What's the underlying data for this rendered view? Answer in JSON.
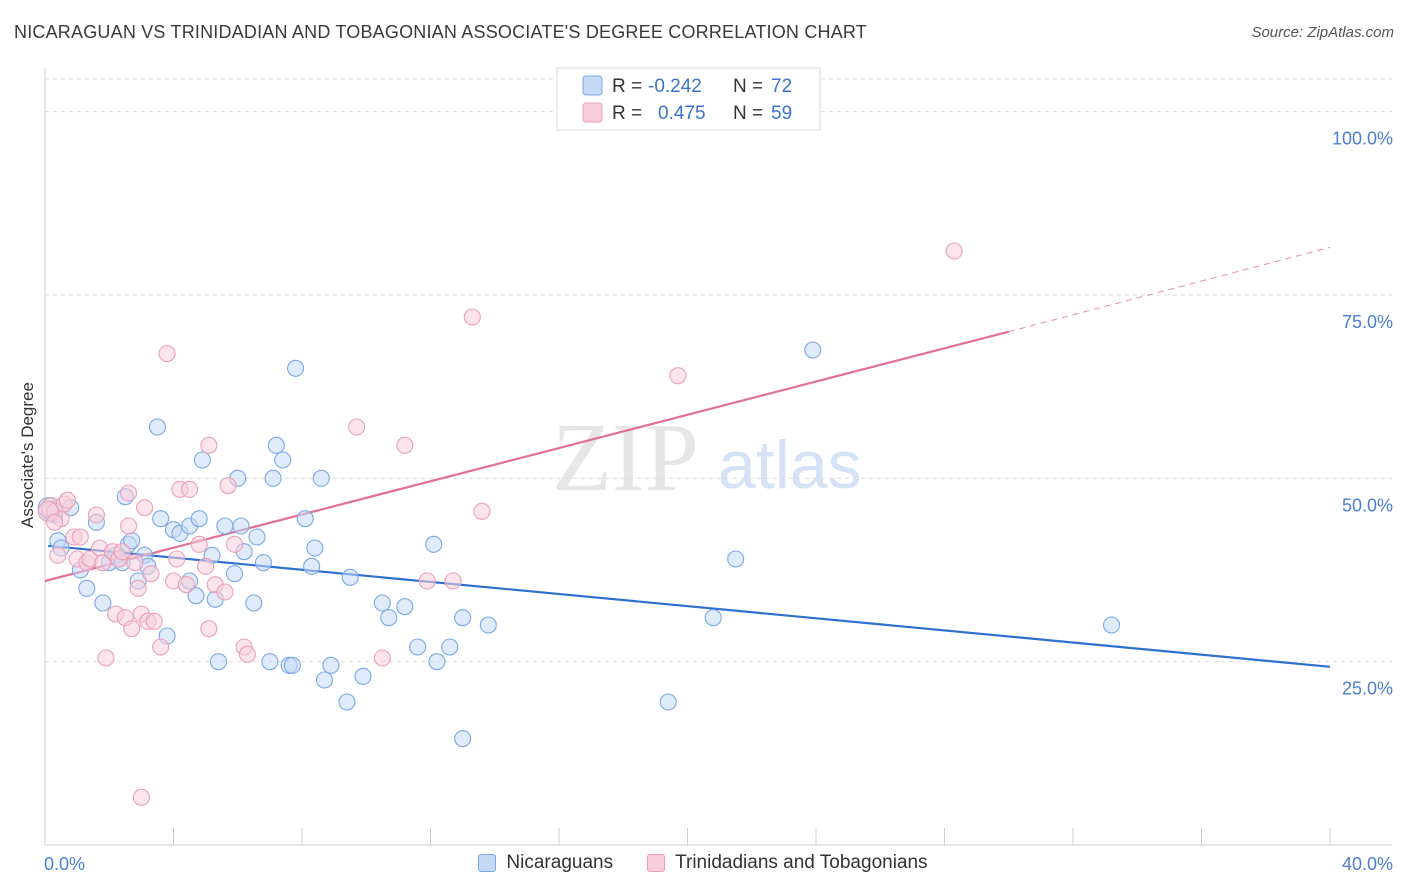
{
  "title": "NICARAGUAN VS TRINIDADIAN AND TOBAGONIAN ASSOCIATE'S DEGREE CORRELATION CHART",
  "source": "Source: ZipAtlas.com",
  "watermark": {
    "zip": "ZIP",
    "atlas": "atlas"
  },
  "legend_box": {
    "rows": [
      {
        "r_label": "R =",
        "r_value": "-0.242",
        "n_label": "N =",
        "n_value": "72"
      },
      {
        "r_label": "R =",
        "r_value": "0.475",
        "n_label": "N =",
        "n_value": "59"
      }
    ]
  },
  "chart_data": {
    "type": "scatter",
    "title": "NICARAGUAN VS TRINIDADIAN AND TOBAGONIAN ASSOCIATE'S DEGREE CORRELATION CHART",
    "xlabel": "",
    "ylabel": "Associate's Degree",
    "xlim": [
      0,
      40
    ],
    "ylim": [
      0,
      105
    ],
    "x_tick_labels": [
      "0.0%",
      "40.0%"
    ],
    "y_ticks": [
      25,
      50,
      75,
      100
    ],
    "y_tick_labels": [
      "25.0%",
      "50.0%",
      "75.0%",
      "100.0%"
    ],
    "grid": true,
    "series": [
      {
        "name": "Nicaraguans",
        "color": "#7aa8e6",
        "fill": "#c5d9f5",
        "line_color": "#2f6fd0",
        "r": -0.242,
        "n": 72,
        "trend": {
          "x0": 0.1,
          "y0": 40.8,
          "x1": 40.0,
          "y1": 24.3
        },
        "points": [
          [
            0.2,
            45.5
          ],
          [
            0.3,
            45.0
          ],
          [
            0.4,
            41.5
          ],
          [
            0.5,
            40.5
          ],
          [
            0.8,
            46.0
          ],
          [
            1.1,
            37.5
          ],
          [
            1.3,
            35.0
          ],
          [
            1.6,
            44.0
          ],
          [
            1.8,
            33.0
          ],
          [
            2.0,
            38.5
          ],
          [
            2.2,
            39.5
          ],
          [
            2.3,
            39.0
          ],
          [
            2.4,
            38.5
          ],
          [
            2.5,
            47.5
          ],
          [
            2.6,
            41.0
          ],
          [
            2.7,
            41.5
          ],
          [
            2.9,
            36.0
          ],
          [
            3.1,
            39.5
          ],
          [
            3.2,
            38.0
          ],
          [
            3.5,
            57.0
          ],
          [
            3.6,
            44.5
          ],
          [
            3.8,
            28.5
          ],
          [
            4.0,
            43.0
          ],
          [
            4.2,
            42.5
          ],
          [
            4.5,
            43.5
          ],
          [
            4.5,
            36.0
          ],
          [
            4.7,
            34.0
          ],
          [
            4.8,
            44.5
          ],
          [
            4.9,
            52.5
          ],
          [
            5.2,
            39.5
          ],
          [
            5.3,
            33.5
          ],
          [
            5.4,
            25.0
          ],
          [
            5.6,
            43.5
          ],
          [
            5.9,
            37.0
          ],
          [
            6.0,
            50.0
          ],
          [
            6.1,
            43.5
          ],
          [
            6.2,
            40.0
          ],
          [
            6.5,
            33.0
          ],
          [
            6.6,
            42.0
          ],
          [
            6.8,
            38.5
          ],
          [
            7.0,
            25.0
          ],
          [
            7.1,
            50.0
          ],
          [
            7.2,
            54.5
          ],
          [
            7.4,
            52.5
          ],
          [
            7.6,
            24.5
          ],
          [
            7.7,
            24.5
          ],
          [
            7.8,
            65.0
          ],
          [
            8.1,
            44.5
          ],
          [
            8.3,
            38.0
          ],
          [
            8.4,
            40.5
          ],
          [
            8.6,
            50.0
          ],
          [
            8.7,
            22.5
          ],
          [
            8.9,
            24.5
          ],
          [
            9.4,
            19.5
          ],
          [
            9.5,
            36.5
          ],
          [
            9.9,
            23.0
          ],
          [
            10.5,
            33.0
          ],
          [
            10.7,
            31.0
          ],
          [
            11.2,
            32.5
          ],
          [
            11.6,
            27.0
          ],
          [
            12.1,
            41.0
          ],
          [
            12.2,
            25.0
          ],
          [
            12.6,
            27.0
          ],
          [
            13.0,
            31.0
          ],
          [
            13.0,
            14.5
          ],
          [
            13.8,
            30.0
          ],
          [
            19.4,
            19.5
          ],
          [
            20.8,
            31.0
          ],
          [
            21.5,
            39.0
          ],
          [
            23.9,
            67.5
          ],
          [
            33.2,
            30.0
          ],
          [
            0.1,
            46.0
          ]
        ]
      },
      {
        "name": "Trinidadians and Tobagonians",
        "color": "#eba0b8",
        "fill": "#f7cdda",
        "line_color": "#e07098",
        "r": 0.475,
        "n": 59,
        "trend": {
          "x0": 0.0,
          "y0": 36.0,
          "x1": 30.0,
          "y1": 70.0
        },
        "trend_dashed": {
          "x0": 30.0,
          "y0": 70.0,
          "x1": 40.0,
          "y1": 81.5
        },
        "points": [
          [
            0.2,
            46.0
          ],
          [
            0.3,
            45.5
          ],
          [
            0.4,
            39.5
          ],
          [
            0.5,
            44.5
          ],
          [
            0.6,
            46.5
          ],
          [
            0.7,
            47.0
          ],
          [
            0.9,
            42.0
          ],
          [
            1.0,
            39.0
          ],
          [
            1.1,
            42.0
          ],
          [
            1.3,
            38.5
          ],
          [
            1.4,
            39.0
          ],
          [
            1.6,
            45.0
          ],
          [
            1.7,
            40.5
          ],
          [
            1.8,
            38.5
          ],
          [
            1.9,
            25.5
          ],
          [
            2.1,
            40.0
          ],
          [
            2.2,
            31.5
          ],
          [
            2.3,
            39.0
          ],
          [
            2.4,
            40.0
          ],
          [
            2.5,
            31.0
          ],
          [
            2.6,
            43.5
          ],
          [
            2.6,
            48.0
          ],
          [
            2.7,
            29.5
          ],
          [
            2.8,
            38.5
          ],
          [
            2.9,
            35.0
          ],
          [
            3.0,
            31.5
          ],
          [
            3.1,
            46.0
          ],
          [
            3.2,
            30.5
          ],
          [
            3.3,
            37.0
          ],
          [
            3.4,
            30.5
          ],
          [
            3.6,
            27.0
          ],
          [
            3.8,
            67.0
          ],
          [
            4.0,
            36.0
          ],
          [
            4.1,
            39.0
          ],
          [
            4.2,
            48.5
          ],
          [
            4.4,
            35.5
          ],
          [
            4.5,
            48.5
          ],
          [
            4.8,
            41.0
          ],
          [
            5.0,
            38.0
          ],
          [
            5.1,
            29.5
          ],
          [
            5.1,
            54.5
          ],
          [
            5.3,
            35.5
          ],
          [
            5.6,
            34.5
          ],
          [
            5.7,
            49.0
          ],
          [
            5.9,
            41.0
          ],
          [
            6.2,
            27.0
          ],
          [
            6.3,
            26.0
          ],
          [
            9.7,
            57.0
          ],
          [
            10.5,
            25.5
          ],
          [
            11.2,
            54.5
          ],
          [
            11.9,
            36.0
          ],
          [
            12.7,
            36.0
          ],
          [
            13.3,
            72.0
          ],
          [
            13.6,
            45.5
          ],
          [
            19.7,
            64.0
          ],
          [
            28.3,
            81.0
          ],
          [
            3.0,
            6.5
          ],
          [
            0.1,
            45.5
          ],
          [
            0.3,
            44.0
          ]
        ]
      }
    ]
  },
  "bottom_legend": [
    "Nicaraguans",
    "Trinidadians and Tobagonians"
  ]
}
